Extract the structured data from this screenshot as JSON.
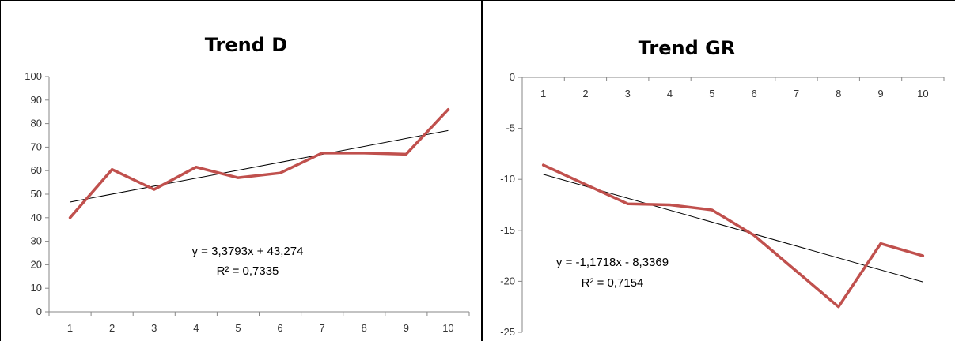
{
  "chart_data": [
    {
      "type": "line",
      "title": "Trend D",
      "xlabel": "",
      "ylabel": "",
      "categories": [
        "1",
        "2",
        "3",
        "4",
        "5",
        "6",
        "7",
        "8",
        "9",
        "10"
      ],
      "series": [
        {
          "values": [
            40,
            60.5,
            52,
            61.5,
            57,
            59,
            67.5,
            67.5,
            67,
            86
          ],
          "color": "#c0504d"
        }
      ],
      "trendline": {
        "slope": 3.3793,
        "intercept": 43.274,
        "color": "#000000"
      },
      "equation": "y = 3,3793x + 43,274",
      "r_squared": "R² = 0,7335",
      "ylim": [
        0,
        100
      ],
      "yticks": [
        0,
        10,
        20,
        30,
        40,
        50,
        60,
        70,
        80,
        90,
        100
      ],
      "grid": false,
      "x_axis_position": "bottom"
    },
    {
      "type": "line",
      "title": "Trend GR",
      "xlabel": "",
      "ylabel": "",
      "categories": [
        "1",
        "2",
        "3",
        "4",
        "5",
        "6",
        "7",
        "8",
        "9",
        "10"
      ],
      "series": [
        {
          "values": [
            -8.6,
            -10.5,
            -12.4,
            -12.5,
            -13,
            -15.5,
            -19,
            -22.5,
            -16.3,
            -17.5
          ],
          "color": "#c0504d"
        }
      ],
      "trendline": {
        "slope": -1.1718,
        "intercept": -8.3369,
        "color": "#000000"
      },
      "equation": "y = -1,1718x - 8,3369",
      "r_squared": "R² = 0,7154",
      "ylim": [
        -25,
        0
      ],
      "yticks": [
        0,
        -5,
        -10,
        -15,
        -20,
        -25
      ],
      "grid": false,
      "x_axis_position": "top"
    }
  ]
}
